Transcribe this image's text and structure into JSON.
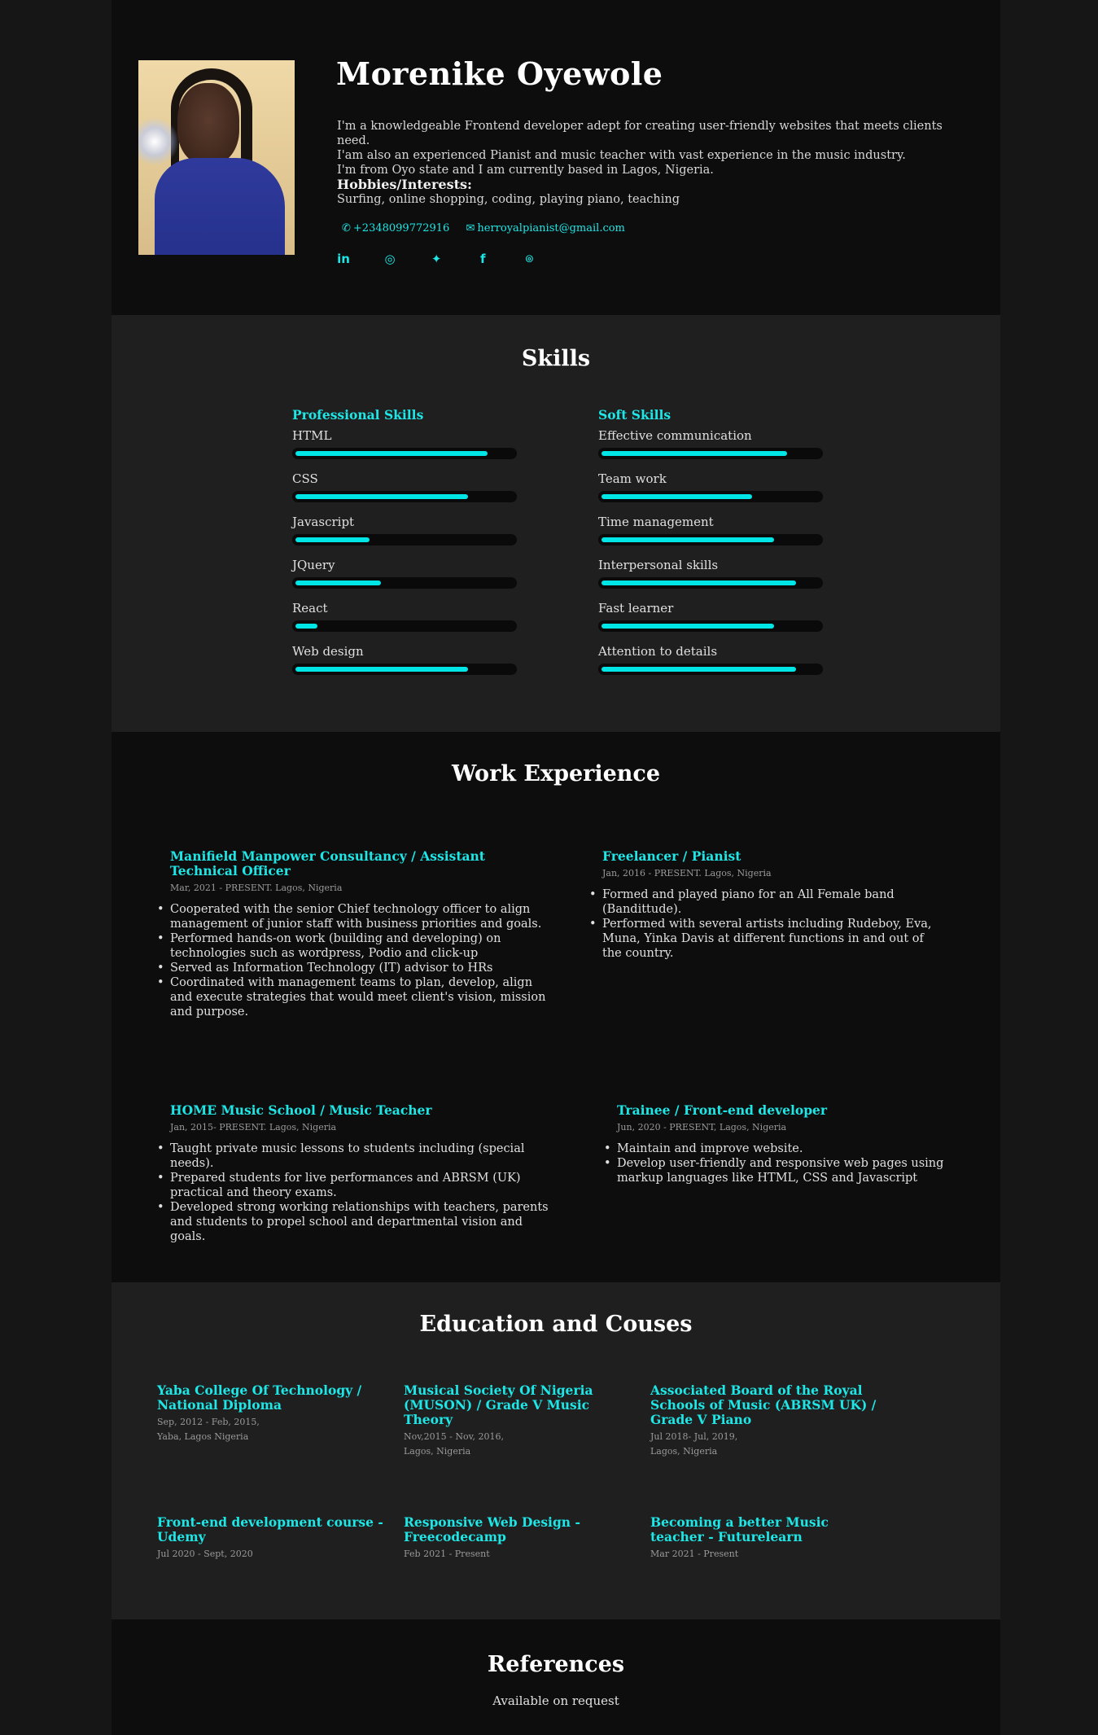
{
  "profile": {
    "name": "Morenike Oyewole",
    "bio_lines": [
      "I'm a knowledgeable Frontend developer adept for creating user-friendly websites that meets clients need.",
      "I'am also an experienced Pianist and music teacher with vast experience in the music industry.",
      "I'm from Oyo state and I am currently based in Lagos, Nigeria."
    ],
    "hobbies_title": "Hobbies/Interests:",
    "hobbies": "Surfing, online shopping, coding, playing piano, teaching",
    "phone": "+2348099772916",
    "email": "herroyalpianist@gmail.com",
    "socials": [
      {
        "name": "linkedin-icon",
        "glyph": "in"
      },
      {
        "name": "instagram-icon",
        "glyph": "◎"
      },
      {
        "name": "twitter-icon",
        "glyph": "✦"
      },
      {
        "name": "facebook-icon",
        "glyph": "f"
      },
      {
        "name": "github-icon",
        "glyph": "⌾"
      }
    ]
  },
  "skills": {
    "title": "Skills",
    "professional": {
      "title": "Professional Skills",
      "items": [
        {
          "label": "HTML",
          "level": 0.88
        },
        {
          "label": "CSS",
          "level": 0.79
        },
        {
          "label": "Javascript",
          "level": 0.34
        },
        {
          "label": "JQuery",
          "level": 0.39
        },
        {
          "label": "React",
          "level": 0.1
        },
        {
          "label": "Web design",
          "level": 0.79
        }
      ]
    },
    "soft": {
      "title": "Soft Skills",
      "items": [
        {
          "label": "Effective communication",
          "level": 0.85
        },
        {
          "label": "Team work",
          "level": 0.69
        },
        {
          "label": "Time management",
          "level": 0.79
        },
        {
          "label": "Interpersonal skills",
          "level": 0.89
        },
        {
          "label": "Fast learner",
          "level": 0.79
        },
        {
          "label": "Attention to details",
          "level": 0.89
        }
      ]
    }
  },
  "work": {
    "title": "Work Experience",
    "jobs": [
      {
        "title": "Manifield Manpower Consultancy / Assistant Technical Officer",
        "meta": "Mar, 2021 - PRESENT. Lagos, Nigeria",
        "bullets": [
          "Cooperated with the senior Chief technology officer to align management of junior staff with business priorities and goals.",
          "Performed hands-on work (building and developing) on technologies such as wordpress, Podio and click-up",
          "Served as Information Technology (IT) advisor to HRs",
          "Coordinated with management teams to plan, develop, align and execute strategies that would meet client's vision, mission and purpose."
        ]
      },
      {
        "title": "Freelancer / Pianist",
        "meta": "Jan, 2016 - PRESENT. Lagos, Nigeria",
        "bullets": [
          "Formed and played piano for an All Female band (Bandittude).",
          "Performed with several artists including Rudeboy, Eva, Muna, Yinka Davis at different functions in and out of the country."
        ]
      },
      {
        "title": "HOME Music School / Music Teacher",
        "meta": "Jan, 2015- PRESENT. Lagos, Nigeria",
        "bullets": [
          "Taught private music lessons to students including (special needs).",
          "Prepared students for live performances and ABRSM (UK) practical and theory exams.",
          "Developed strong working relationships with teachers, parents and students to propel school and departmental vision and goals."
        ]
      },
      {
        "title": "Trainee / Front-end developer",
        "meta": "Jun, 2020 - PRESENT, Lagos, Nigeria",
        "bullets": [
          "Maintain and improve website.",
          "Develop user-friendly and responsive web pages using markup languages like HTML, CSS and Javascript"
        ]
      }
    ]
  },
  "education": {
    "title": "Education and Couses",
    "courses": [
      {
        "title": "Yaba College Of Technology / National Diploma",
        "meta1": "Sep, 2012 - Feb, 2015,",
        "meta2": "Yaba, Lagos Nigeria"
      },
      {
        "title": "Musical Society Of Nigeria (MUSON) / Grade V Music Theory",
        "meta1": "Nov,2015 - Nov, 2016,",
        "meta2": "Lagos, Nigeria"
      },
      {
        "title": "Associated Board of the Royal Schools of Music (ABRSM UK) / Grade V Piano",
        "meta1": "Jul 2018- Jul, 2019,",
        "meta2": "Lagos, Nigeria"
      },
      {
        "title": "Front-end development course - Udemy",
        "meta1": "Jul 2020 - Sept, 2020",
        "meta2": ""
      },
      {
        "title": "Responsive Web Design - Freecodecamp",
        "meta1": "Feb 2021 - Present",
        "meta2": ""
      },
      {
        "title": "Becoming a better Music teacher - Futurelearn",
        "meta1": "Mar 2021 - Present",
        "meta2": ""
      }
    ]
  },
  "references": {
    "title": "References",
    "text": "Available on request"
  }
}
